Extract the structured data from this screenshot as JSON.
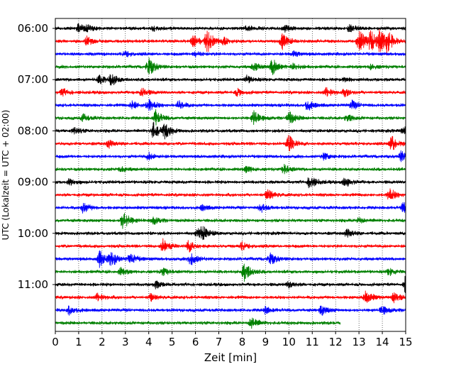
{
  "chart_data": {
    "type": "line",
    "xlabel": "Zeit  [min]",
    "ylabel": "UTC (Lokalzeit = UTC + 02:00)",
    "xlim": [
      0,
      15
    ],
    "x_ticks": [
      "0",
      "1",
      "2",
      "3",
      "4",
      "5",
      "6",
      "7",
      "8",
      "9",
      "10",
      "11",
      "12",
      "13",
      "14",
      "15"
    ],
    "y_ticks": [
      {
        "label": "06:00",
        "row": 0
      },
      {
        "label": "07:00",
        "row": 4
      },
      {
        "label": "08:00",
        "row": 8
      },
      {
        "label": "09:00",
        "row": 12
      },
      {
        "label": "10:00",
        "row": 16
      },
      {
        "label": "11:00",
        "row": 20
      }
    ],
    "grid": "vertical dotted at each minute",
    "row_colors": [
      "#000000",
      "#ff0000",
      "#0000ff",
      "#008000"
    ],
    "rows": [
      {
        "time": "06:00",
        "end": 15,
        "events": [
          {
            "t": 1.0,
            "a": 0.5
          },
          {
            "t": 1.4,
            "a": 0.3
          },
          {
            "t": 4.2,
            "a": 0.3
          },
          {
            "t": 8.2,
            "a": 0.35
          },
          {
            "t": 9.8,
            "a": 0.35
          },
          {
            "t": 12.6,
            "a": 0.4
          }
        ]
      },
      {
        "time": "06:15",
        "end": 15,
        "events": [
          {
            "t": 1.35,
            "a": 0.5
          },
          {
            "t": 5.9,
            "a": 0.8
          },
          {
            "t": 6.5,
            "a": 1.4
          },
          {
            "t": 7.2,
            "a": 0.4
          },
          {
            "t": 9.7,
            "a": 1.0
          },
          {
            "t": 13.0,
            "a": 1.6
          },
          {
            "t": 13.5,
            "a": 1.2
          },
          {
            "t": 13.9,
            "a": 1.3
          },
          {
            "t": 14.2,
            "a": 1.2
          }
        ]
      },
      {
        "time": "06:30",
        "end": 15,
        "events": [
          {
            "t": 3.0,
            "a": 0.3
          },
          {
            "t": 6.0,
            "a": 0.3
          },
          {
            "t": 10.2,
            "a": 0.3
          }
        ]
      },
      {
        "time": "06:45",
        "end": 15,
        "events": [
          {
            "t": 4.0,
            "a": 1.1
          },
          {
            "t": 8.5,
            "a": 0.5
          },
          {
            "t": 9.3,
            "a": 1.0
          },
          {
            "t": 10.2,
            "a": 0.4
          },
          {
            "t": 13.5,
            "a": 0.3
          }
        ]
      },
      {
        "time": "07:00",
        "end": 15,
        "events": [
          {
            "t": 1.9,
            "a": 0.5
          },
          {
            "t": 2.4,
            "a": 0.7
          },
          {
            "t": 8.2,
            "a": 0.4
          },
          {
            "t": 12.4,
            "a": 0.3
          }
        ]
      },
      {
        "time": "07:15",
        "end": 15,
        "events": [
          {
            "t": 0.3,
            "a": 0.4
          },
          {
            "t": 3.7,
            "a": 0.5
          },
          {
            "t": 7.8,
            "a": 0.4
          },
          {
            "t": 11.6,
            "a": 0.6
          },
          {
            "t": 12.4,
            "a": 0.4
          }
        ]
      },
      {
        "time": "07:30",
        "end": 15,
        "events": [
          {
            "t": 3.3,
            "a": 0.5
          },
          {
            "t": 4.0,
            "a": 0.8
          },
          {
            "t": 5.3,
            "a": 0.5
          },
          {
            "t": 10.8,
            "a": 0.6
          },
          {
            "t": 12.7,
            "a": 0.5
          }
        ]
      },
      {
        "time": "07:45",
        "end": 15,
        "events": [
          {
            "t": 1.2,
            "a": 0.4
          },
          {
            "t": 4.3,
            "a": 0.9
          },
          {
            "t": 8.5,
            "a": 0.8
          },
          {
            "t": 10.0,
            "a": 0.8
          },
          {
            "t": 12.5,
            "a": 0.4
          }
        ]
      },
      {
        "time": "08:00",
        "end": 15,
        "events": [
          {
            "t": 0.8,
            "a": 0.4
          },
          {
            "t": 4.2,
            "a": 1.0
          },
          {
            "t": 4.7,
            "a": 0.8
          },
          {
            "t": 14.9,
            "a": 0.5
          }
        ]
      },
      {
        "time": "08:15",
        "end": 15,
        "events": [
          {
            "t": 2.3,
            "a": 0.5
          },
          {
            "t": 10.0,
            "a": 1.0
          },
          {
            "t": 14.4,
            "a": 0.9
          }
        ]
      },
      {
        "time": "08:30",
        "end": 15,
        "events": [
          {
            "t": 4.0,
            "a": 0.4
          },
          {
            "t": 11.5,
            "a": 0.4
          },
          {
            "t": 14.8,
            "a": 0.6
          }
        ]
      },
      {
        "time": "08:45",
        "end": 15,
        "events": [
          {
            "t": 2.8,
            "a": 0.3
          },
          {
            "t": 8.2,
            "a": 0.4
          },
          {
            "t": 9.8,
            "a": 0.5
          }
        ]
      },
      {
        "time": "09:00",
        "end": 15,
        "events": [
          {
            "t": 0.6,
            "a": 0.4
          },
          {
            "t": 10.9,
            "a": 0.8
          },
          {
            "t": 12.4,
            "a": 0.6
          }
        ]
      },
      {
        "time": "09:15",
        "end": 15,
        "events": [
          {
            "t": 9.1,
            "a": 0.7
          },
          {
            "t": 14.3,
            "a": 0.8
          }
        ]
      },
      {
        "time": "09:30",
        "end": 15,
        "events": [
          {
            "t": 1.2,
            "a": 0.6
          },
          {
            "t": 6.3,
            "a": 0.3
          },
          {
            "t": 8.8,
            "a": 0.5
          },
          {
            "t": 14.9,
            "a": 0.6
          }
        ]
      },
      {
        "time": "09:45",
        "end": 15,
        "events": [
          {
            "t": 2.9,
            "a": 1.2
          },
          {
            "t": 4.2,
            "a": 0.4
          },
          {
            "t": 13.0,
            "a": 0.3
          }
        ]
      },
      {
        "time": "10:00",
        "end": 15,
        "events": [
          {
            "t": 6.3,
            "a": 0.7
          },
          {
            "t": 6.1,
            "a": 0.5
          },
          {
            "t": 12.5,
            "a": 0.6
          }
        ]
      },
      {
        "time": "10:15",
        "end": 15,
        "events": [
          {
            "t": 4.6,
            "a": 0.8
          },
          {
            "t": 5.7,
            "a": 0.7
          },
          {
            "t": 8.0,
            "a": 0.4
          }
        ]
      },
      {
        "time": "10:30",
        "end": 15,
        "events": [
          {
            "t": 1.9,
            "a": 0.9
          },
          {
            "t": 2.4,
            "a": 0.8
          },
          {
            "t": 3.2,
            "a": 0.7
          },
          {
            "t": 5.8,
            "a": 0.8
          },
          {
            "t": 9.2,
            "a": 0.7
          }
        ]
      },
      {
        "time": "10:45",
        "end": 15,
        "events": [
          {
            "t": 2.8,
            "a": 0.4
          },
          {
            "t": 4.6,
            "a": 0.4
          },
          {
            "t": 8.1,
            "a": 1.2
          },
          {
            "t": 14.3,
            "a": 0.4
          }
        ]
      },
      {
        "time": "11:00",
        "end": 15,
        "events": [
          {
            "t": 4.3,
            "a": 0.4
          },
          {
            "t": 10.0,
            "a": 0.4
          },
          {
            "t": 15.0,
            "a": 1.0
          }
        ]
      },
      {
        "time": "11:15",
        "end": 15,
        "events": [
          {
            "t": 1.8,
            "a": 0.5
          },
          {
            "t": 4.1,
            "a": 0.4
          },
          {
            "t": 13.3,
            "a": 0.8
          },
          {
            "t": 14.5,
            "a": 0.5
          }
        ]
      },
      {
        "time": "11:30",
        "end": 15,
        "events": [
          {
            "t": 0.6,
            "a": 0.5
          },
          {
            "t": 9.0,
            "a": 0.4
          },
          {
            "t": 11.4,
            "a": 0.6
          },
          {
            "t": 14.0,
            "a": 0.5
          }
        ]
      },
      {
        "time": "11:45",
        "end": 12.2,
        "events": [
          {
            "t": 8.4,
            "a": 0.7
          }
        ]
      }
    ]
  }
}
